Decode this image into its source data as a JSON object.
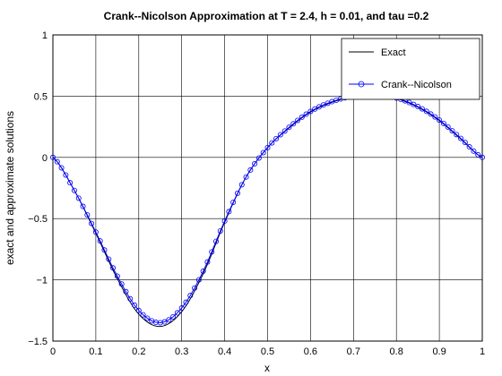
{
  "chart_data": {
    "type": "line",
    "title": "Crank--Nicolson Approximation at T = 2.4, h = 0.01, and tau =0.2",
    "xlabel": "x",
    "ylabel": "exact and approximate solutions",
    "xlim": [
      0,
      1
    ],
    "ylim": [
      -1.5,
      1
    ],
    "grid": true,
    "legend_position": "top-right",
    "x_ticks": [
      "0",
      "0.1",
      "0.2",
      "0.3",
      "0.4",
      "0.5",
      "0.6",
      "0.7",
      "0.8",
      "0.9",
      "1"
    ],
    "y_ticks": [
      "−1.5",
      "−1",
      "−0.5",
      "0",
      "0.5",
      "1"
    ],
    "x": [
      0,
      0.05,
      0.1,
      0.15,
      0.2,
      0.25,
      0.3,
      0.35,
      0.4,
      0.45,
      0.5,
      0.55,
      0.6,
      0.65,
      0.7,
      0.75,
      0.8,
      0.85,
      0.9,
      0.95,
      1
    ],
    "series": [
      {
        "name": "Exact",
        "color": "#000000",
        "marker": "none",
        "values": [
          0,
          -0.27,
          -0.62,
          -0.99,
          -1.28,
          -1.38,
          -1.26,
          -0.95,
          -0.53,
          -0.16,
          0.08,
          0.24,
          0.37,
          0.45,
          0.495,
          0.505,
          0.48,
          0.41,
          0.3,
          0.15,
          0
        ]
      },
      {
        "name": "Crank--Nicolson",
        "color": "#0000ff",
        "marker": "circle",
        "values": [
          0,
          -0.27,
          -0.61,
          -0.97,
          -1.25,
          -1.35,
          -1.23,
          -0.93,
          -0.52,
          -0.16,
          0.08,
          0.245,
          0.375,
          0.455,
          0.5,
          0.51,
          0.485,
          0.415,
          0.305,
          0.155,
          0
        ]
      }
    ]
  }
}
